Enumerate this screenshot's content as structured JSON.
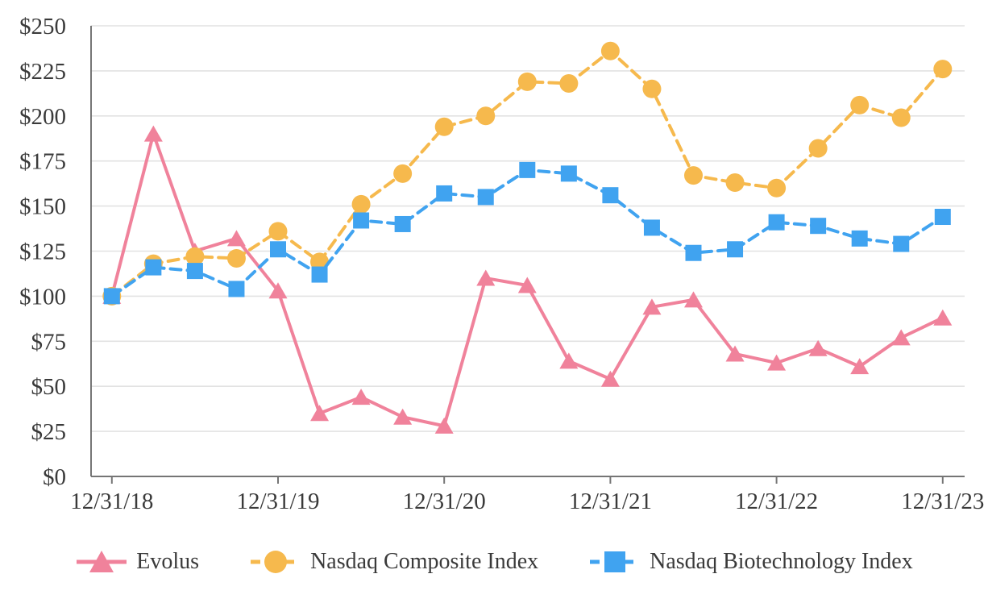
{
  "chart_data": {
    "type": "line",
    "title": "",
    "xlabel": "",
    "ylabel": "",
    "ylim": [
      0,
      250
    ],
    "y_tick_step": 25,
    "y_tick_labels": [
      "$0",
      "$25",
      "$50",
      "$75",
      "$100",
      "$125",
      "$150",
      "$175",
      "$200",
      "$225",
      "$250"
    ],
    "x_tick_labels": [
      "12/31/18",
      "12/31/19",
      "12/31/20",
      "12/31/21",
      "12/31/22",
      "12/31/23"
    ],
    "x_tick_point_indices": [
      0,
      4,
      8,
      12,
      16,
      20
    ],
    "categories": [
      "12/31/18",
      "3/31/19",
      "6/30/19",
      "9/30/19",
      "12/31/19",
      "3/31/20",
      "6/30/20",
      "9/30/20",
      "12/31/20",
      "3/31/21",
      "6/30/21",
      "9/30/21",
      "12/31/21",
      "3/31/22",
      "6/30/22",
      "9/30/22",
      "12/31/22",
      "3/31/23",
      "6/30/23",
      "9/30/23",
      "12/31/23"
    ],
    "grid": true,
    "legend_position": "bottom",
    "colors": {
      "gridline": "#e2e2e2",
      "axis": "#757575",
      "tick_text": "#3a3a3a",
      "background": "#ffffff"
    },
    "series": [
      {
        "name": "Evolus",
        "color": "#f0829b",
        "marker": "triangle",
        "line_style": "solid",
        "values": [
          100,
          190,
          125,
          132,
          103,
          35,
          44,
          33,
          28,
          110,
          106,
          64,
          54,
          94,
          98,
          68,
          63,
          71,
          61,
          77,
          88
        ]
      },
      {
        "name": "Nasdaq Composite Index",
        "color": "#f6b94d",
        "marker": "circle",
        "line_style": "dashed",
        "values": [
          100,
          118,
          122,
          121,
          136,
          119,
          151,
          168,
          194,
          200,
          219,
          218,
          236,
          215,
          167,
          163,
          160,
          182,
          206,
          199,
          226
        ]
      },
      {
        "name": "Nasdaq Biotechnology Index",
        "color": "#40a3f0",
        "marker": "square",
        "line_style": "dashed",
        "values": [
          100,
          116,
          114,
          104,
          126,
          112,
          142,
          140,
          157,
          155,
          170,
          168,
          156,
          138,
          124,
          126,
          141,
          139,
          132,
          129,
          144
        ]
      }
    ]
  }
}
